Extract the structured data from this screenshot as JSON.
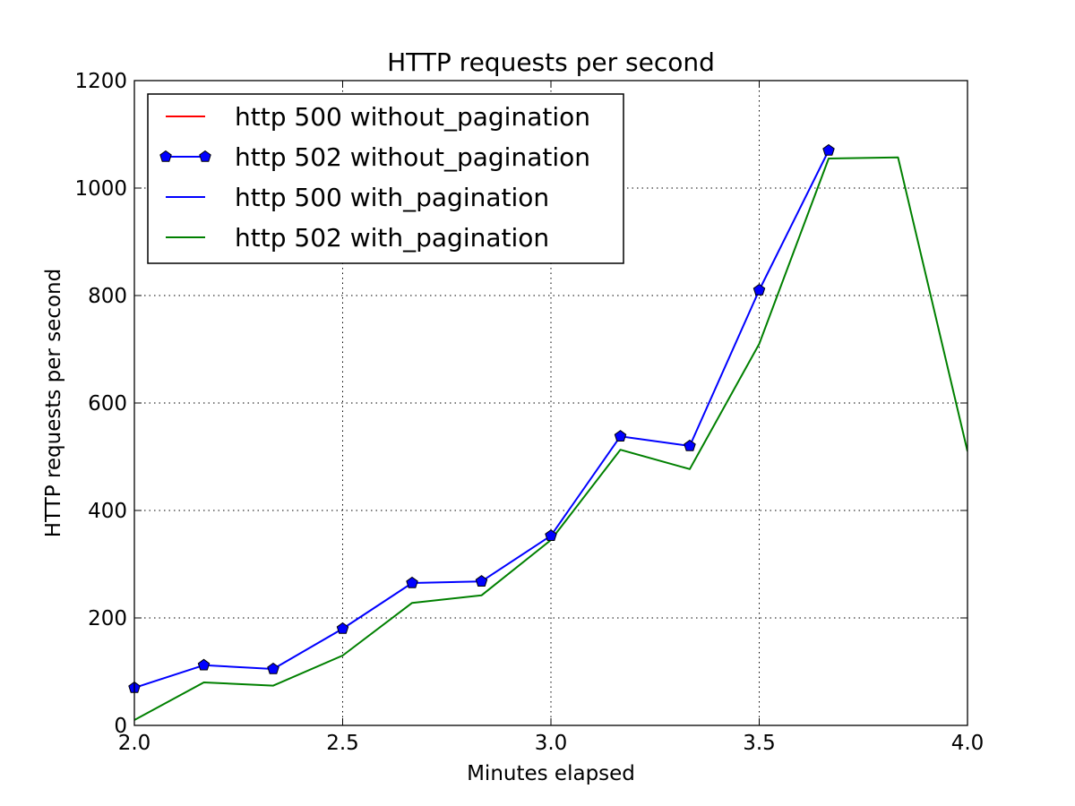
{
  "chart_data": {
    "type": "line",
    "title": "HTTP requests per second",
    "xlabel": "Minutes elapsed",
    "ylabel": "HTTP requests per second",
    "xlim": [
      2.0,
      4.0
    ],
    "ylim": [
      0,
      1200
    ],
    "xticks": [
      2.0,
      2.5,
      3.0,
      3.5,
      4.0
    ],
    "xtick_labels": [
      "2.0",
      "2.5",
      "3.0",
      "3.5",
      "4.0"
    ],
    "yticks": [
      0,
      200,
      400,
      600,
      800,
      1000,
      1200
    ],
    "ytick_labels": [
      "0",
      "200",
      "400",
      "600",
      "800",
      "1000",
      "1200"
    ],
    "grid": true,
    "grid_style": "dotted",
    "legend_position": "top-left",
    "series": [
      {
        "name": "http 500 without_pagination",
        "color": "#ff0000",
        "marker": "none",
        "x": [],
        "y": []
      },
      {
        "name": "http 502 without_pagination",
        "color": "#0000ff",
        "marker": "pentagon",
        "x": [
          2.0,
          2.1667,
          2.3333,
          2.5,
          2.6667,
          2.8333,
          3.0,
          3.1667,
          3.3333,
          3.5,
          3.6667
        ],
        "y": [
          70,
          112,
          105,
          180,
          265,
          268,
          353,
          538,
          520,
          810,
          1070
        ]
      },
      {
        "name": "http 500 with_pagination",
        "color": "#0000ff",
        "marker": "none",
        "x": [],
        "y": []
      },
      {
        "name": "http 502 with_pagination",
        "color": "#008000",
        "marker": "none",
        "x": [
          2.0,
          2.1667,
          2.3333,
          2.5,
          2.6667,
          2.8333,
          3.0,
          3.1667,
          3.3333,
          3.5,
          3.6667,
          3.8333,
          4.0
        ],
        "y": [
          10,
          80,
          74,
          130,
          228,
          242,
          345,
          513,
          477,
          710,
          1055,
          1057,
          510
        ]
      }
    ]
  }
}
